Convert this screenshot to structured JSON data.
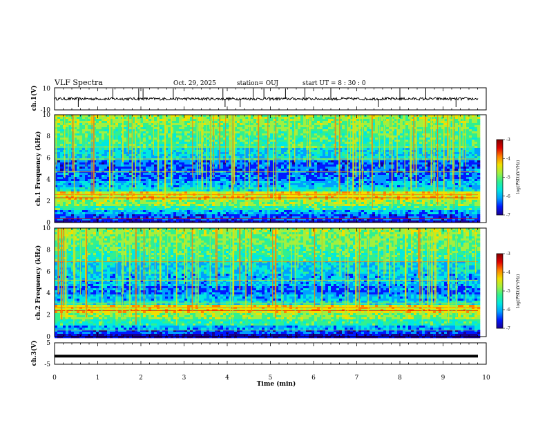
{
  "header": {
    "title": "VLF Spectra",
    "date": "Oct. 29, 2025",
    "station": "station= OUJ",
    "start": "start  UT =   8  : 30 : 0"
  },
  "colors": {
    "colormap": [
      "#1a0090",
      "#0018ff",
      "#00a0ff",
      "#00e8e0",
      "#30f090",
      "#a0f040",
      "#f0e000",
      "#ff8000",
      "#e00000",
      "#800000"
    ],
    "trace": "#000000",
    "frame": "#000000"
  },
  "chart_data": [
    {
      "type": "line",
      "id": "ch1-waveform",
      "ylabel": "ch.1(V)",
      "xlim": [
        0,
        10
      ],
      "ylim": [
        -10,
        10
      ],
      "yticks": [
        "10",
        "-10"
      ],
      "baseline": 0,
      "spikes_min": [
        0.55,
        1.35,
        1.95,
        2.05,
        2.75,
        3.9,
        3.95,
        4.3,
        4.6,
        4.85,
        5.35,
        5.8,
        6.4,
        7.5,
        8.0,
        8.6,
        9.3
      ]
    },
    {
      "type": "heatmap",
      "id": "ch1-spectrogram",
      "ylabel": "ch.1 Frequency (kHz)",
      "xlim": [
        0,
        10
      ],
      "ylim": [
        0,
        10
      ],
      "yticks": [
        "0",
        "2",
        "4",
        "6",
        "8",
        "10"
      ],
      "colorbar": {
        "label": "log(PSD)(V²/Hz)",
        "range": [
          -7,
          -3
        ],
        "ticks": [
          "-3",
          "-4",
          "-5",
          "-6",
          "-7"
        ]
      }
    },
    {
      "type": "heatmap",
      "id": "ch2-spectrogram",
      "ylabel": "ch.2 Frequency (kHz)",
      "xlim": [
        0,
        10
      ],
      "ylim": [
        0,
        10
      ],
      "yticks": [
        "0",
        "2",
        "4",
        "6",
        "8",
        "10"
      ],
      "colorbar": {
        "label": "log(PSD)(V²/Hz)",
        "range": [
          -7,
          -3
        ],
        "ticks": [
          "-3",
          "-4",
          "-5",
          "-6",
          "-7"
        ]
      }
    },
    {
      "type": "line",
      "id": "ch3-waveform",
      "ylabel": "ch.3(V)",
      "xlim": [
        0,
        10
      ],
      "ylim": [
        -5,
        5
      ],
      "yticks": [
        "5",
        "-5"
      ],
      "level": -1.2
    }
  ],
  "time_axis": {
    "label": "Time  (min)",
    "ticks": [
      "0",
      "1",
      "2",
      "3",
      "4",
      "5",
      "6",
      "7",
      "8",
      "9",
      "10"
    ]
  }
}
